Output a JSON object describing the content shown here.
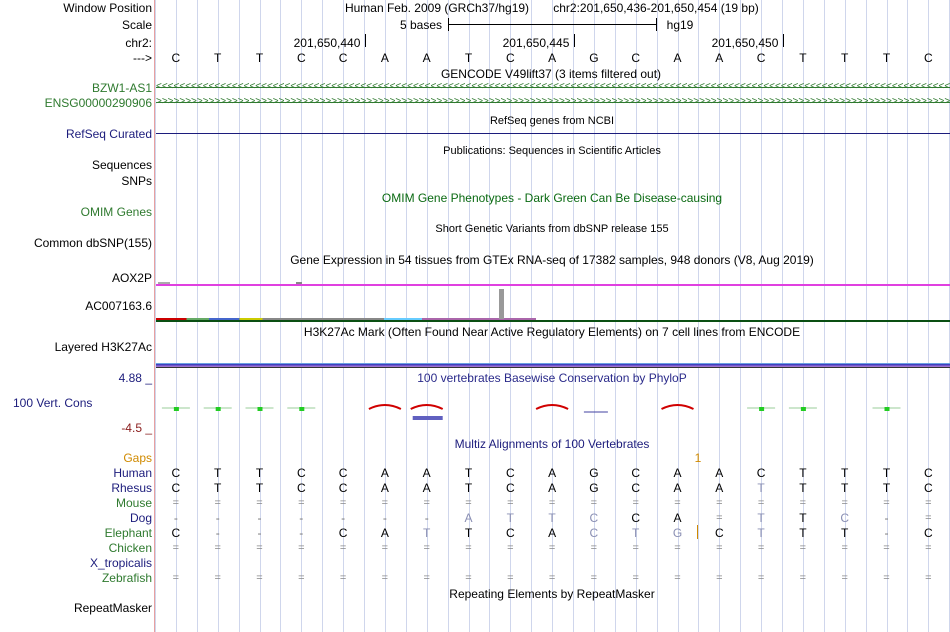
{
  "header": {
    "window_position_label": "Window Position",
    "assembly": "Human Feb. 2009 (GRCh37/hg19)",
    "position": "chr2:201,650,436-201,650,454 (19 bp)",
    "scale_label": "Scale",
    "scale_text": "5 bases",
    "db": "hg19",
    "chrom_label": "chr2:",
    "coord_ticks": [
      "201,650,440",
      "201,650,445",
      "201,650,450"
    ],
    "strand_label": "--->"
  },
  "sequence": [
    "C",
    "T",
    "T",
    "C",
    "C",
    "A",
    "A",
    "T",
    "C",
    "A",
    "G",
    "C",
    "A",
    "A",
    "C",
    "T",
    "T",
    "T",
    "C"
  ],
  "tracks": {
    "gencode": {
      "title": "GENCODE V49lift37 (3 items filtered out)",
      "items": [
        "BZW1-AS1",
        "ENSG00000290906"
      ]
    },
    "refseq": {
      "label": "RefSeq Curated",
      "title": "RefSeq genes from NCBI"
    },
    "publications": {
      "label1": "Sequences",
      "label2": "SNPs",
      "title": "Publications: Sequences in Scientific Articles"
    },
    "omim": {
      "label": "OMIM Genes",
      "title": "OMIM Gene Phenotypes - Dark Green Can Be Disease-causing"
    },
    "dbsnp": {
      "label": "Common dbSNP(155)",
      "title": "Short Genetic Variants from dbSNP release 155"
    },
    "gtex": {
      "title": "Gene Expression in 54 tissues from GTEx RNA-seq of 17382 samples, 948 donors (V8, Aug 2019)",
      "genes": [
        "AOX2P",
        "AC007163.6"
      ]
    },
    "h3k27ac": {
      "label": "Layered H3K27Ac",
      "title": "H3K27Ac Mark (Often Found Near Active Regulatory Elements) on 7 cell lines from ENCODE"
    },
    "conservation": {
      "label": "100 Vert. Cons",
      "max": "4.88 _",
      "min": "-4.5 _",
      "title": "100 vertebrates Basewise Conservation by PhyloP"
    },
    "multiz": {
      "title": "Multiz Alignments of 100 Vertebrates",
      "gaps_label": "Gaps",
      "gap_count": "1",
      "species": [
        {
          "name": "Human",
          "bases": [
            "C",
            "T",
            "T",
            "C",
            "C",
            "A",
            "A",
            "T",
            "C",
            "A",
            "G",
            "C",
            "A",
            "A",
            "C",
            "T",
            "T",
            "T",
            "C"
          ]
        },
        {
          "name": "Rhesus",
          "bases": [
            "C",
            "T",
            "T",
            "C",
            "C",
            "A",
            "A",
            "T",
            "C",
            "A",
            "G",
            "C",
            "A",
            "A",
            "T",
            "T",
            "T",
            "T",
            "C"
          ]
        },
        {
          "name": "Mouse",
          "bases": [
            "=",
            "=",
            "=",
            "=",
            "=",
            "=",
            "=",
            "=",
            "=",
            "=",
            "=",
            "=",
            "=",
            "=",
            "=",
            "=",
            "=",
            "=",
            "="
          ]
        },
        {
          "name": "Dog",
          "bases": [
            "-",
            "-",
            "-",
            "-",
            "-",
            "-",
            "-",
            "A",
            "T",
            "T",
            "C",
            "C",
            "A",
            "=",
            "T",
            "T",
            "C",
            "-",
            "="
          ]
        },
        {
          "name": "Elephant",
          "bases": [
            "C",
            "-",
            "-",
            "-",
            "C",
            "A",
            "T",
            "T",
            "C",
            "A",
            "C",
            "T",
            "G",
            "C",
            "T",
            "T",
            "T",
            "-",
            "C"
          ]
        },
        {
          "name": "Chicken",
          "bases": [
            "=",
            "=",
            "=",
            "=",
            "=",
            "=",
            "=",
            "=",
            "=",
            "=",
            "=",
            "=",
            "=",
            "=",
            "=",
            "=",
            "=",
            "=",
            "="
          ]
        },
        {
          "name": "X_tropicalis",
          "bases": [
            "",
            "",
            "",
            "",
            "",
            "",
            "",
            "",
            "",
            "",
            "",
            "",
            "",
            "",
            "",
            "",
            "",
            "",
            ""
          ]
        },
        {
          "name": "Zebrafish",
          "bases": [
            "=",
            "=",
            "=",
            "=",
            "=",
            "=",
            "=",
            "=",
            "=",
            "=",
            "=",
            "=",
            "=",
            "=",
            "=",
            "=",
            "=",
            "=",
            "="
          ]
        }
      ]
    },
    "repeatmasker": {
      "label": "RepeatMasker",
      "title": "Repeating Elements by RepeatMasker"
    }
  },
  "colors": {
    "green_label": "#2f7a2f",
    "navy_label": "#1c1c7c",
    "orange": "#d08a00",
    "magenta": "#e040e0",
    "dark_green": "#0a4f12",
    "blue_band": "#4040c0",
    "red_peak": "#d00000",
    "cons_green": "#22cc22"
  }
}
